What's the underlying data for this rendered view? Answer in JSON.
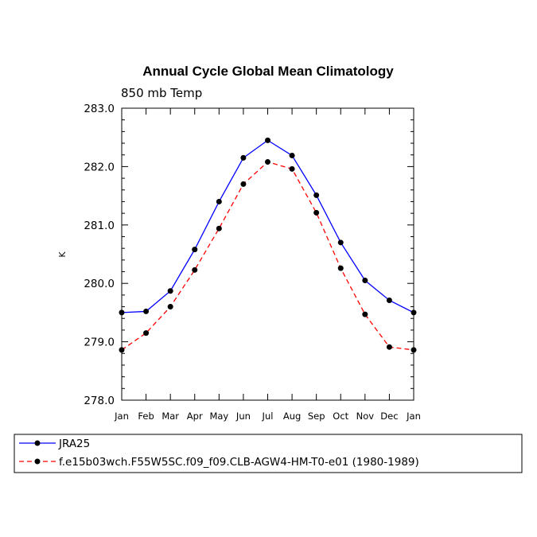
{
  "chart_data": {
    "type": "line",
    "title": "Annual Cycle Global Mean Climatology",
    "subtitle": "850 mb Temp",
    "xlabel": "",
    "ylabel": "K",
    "categories": [
      "Jan",
      "Feb",
      "Mar",
      "Apr",
      "May",
      "Jun",
      "Jul",
      "Aug",
      "Sep",
      "Oct",
      "Nov",
      "Dec",
      "Jan"
    ],
    "ylim": [
      278.0,
      283.0
    ],
    "yticks": [
      "278.0",
      "279.0",
      "280.0",
      "281.0",
      "282.0",
      "283.0"
    ],
    "grid": false,
    "legend_position": "bottom",
    "series": [
      {
        "name": "JRA25",
        "color": "#0000ff",
        "line_style": "solid",
        "values": [
          279.5,
          279.52,
          279.87,
          280.58,
          281.4,
          282.15,
          282.45,
          282.19,
          281.51,
          280.7,
          280.05,
          279.71,
          279.5
        ]
      },
      {
        "name": "f.e15b03wch.F55W5SC.f09_f09.CLB-AGW4-HM-T0-e01 (1980-1989)",
        "color": "#ff0000",
        "line_style": "dashed",
        "values": [
          278.86,
          279.15,
          279.6,
          280.23,
          280.94,
          281.7,
          282.08,
          281.96,
          281.21,
          280.26,
          279.47,
          278.91,
          278.86
        ]
      }
    ]
  }
}
